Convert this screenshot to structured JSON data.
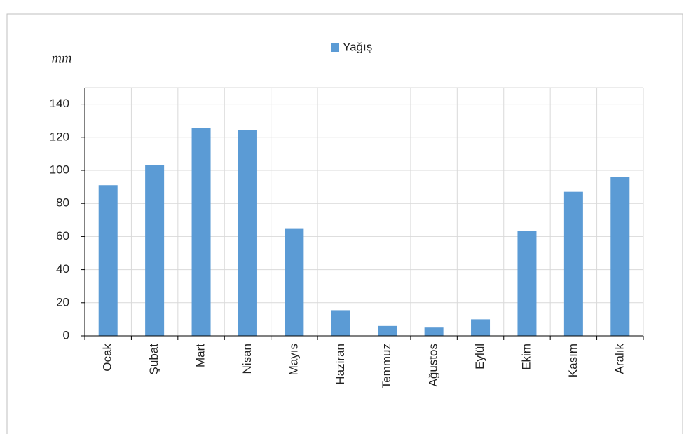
{
  "chart_data": {
    "type": "bar",
    "y_axis_label": "mm",
    "categories": [
      "Ocak",
      "Şubat",
      "Mart",
      "Nisan",
      "Mayıs",
      "Haziran",
      "Temmuz",
      "Ağustos",
      "Eylül",
      "Ekim",
      "Kasım",
      "Aralık"
    ],
    "series": [
      {
        "name": "Yağış",
        "color": "#5b9bd5",
        "values": [
          91,
          103,
          125.5,
          124.5,
          65,
          15.5,
          6,
          5,
          10,
          63.5,
          87,
          96
        ]
      }
    ],
    "ylim": [
      0,
      150
    ],
    "yticks": [
      0,
      20,
      40,
      60,
      80,
      100,
      120,
      140
    ],
    "grid": true,
    "legend": "top"
  }
}
